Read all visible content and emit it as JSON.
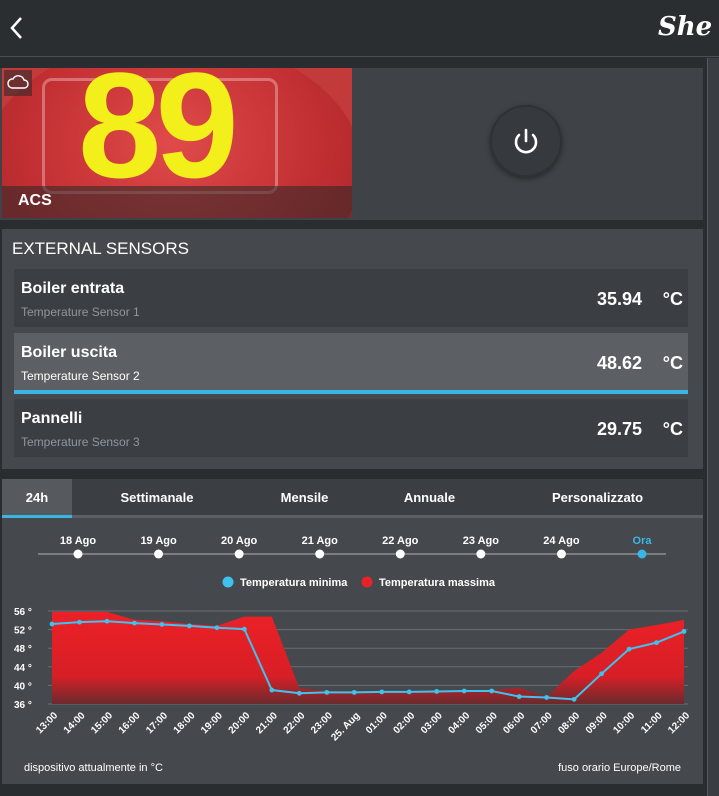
{
  "header": {
    "back_icon": "chevron-left-icon",
    "logo_text": "She"
  },
  "device": {
    "thumbnail_number": "89",
    "name": "ACS",
    "cloud_icon": "cloud-icon",
    "power_icon": "power-icon"
  },
  "sensors": {
    "title": "EXTERNAL SENSORS",
    "items": [
      {
        "name": "Boiler entrata",
        "sub": "Temperature Sensor 1",
        "value": "35.94",
        "unit": "°C"
      },
      {
        "name": "Boiler uscita",
        "sub": "Temperature Sensor 2",
        "value": "48.62",
        "unit": "°C"
      },
      {
        "name": "Pannelli",
        "sub": "Temperature Sensor 3",
        "value": "29.75",
        "unit": "°C"
      }
    ],
    "selected_index": 1,
    "accent": "#3ab6e6"
  },
  "tabs": [
    "24h",
    "Settimanale",
    "Mensile",
    "Annuale",
    "Personalizzato"
  ],
  "timeline": {
    "labels": [
      "18 Ago",
      "19 Ago",
      "20 Ago",
      "21 Ago",
      "22 Ago",
      "23 Ago",
      "24 Ago",
      "Ora"
    ],
    "active_index": 7
  },
  "chart_data": {
    "type": "area",
    "legend_position": "top",
    "series": [
      {
        "name": "Temperatura minima",
        "color": "#3ec3f0",
        "style": "line",
        "values": [
          53.2,
          53.6,
          53.8,
          53.4,
          53.1,
          52.8,
          52.4,
          52.1,
          39.0,
          38.3,
          38.5,
          38.5,
          38.6,
          38.6,
          38.7,
          38.8,
          38.8,
          37.6,
          37.4,
          37.0,
          42.5,
          47.8,
          49.2,
          51.6
        ]
      },
      {
        "name": "Temperatura massima",
        "color": "#e8222b",
        "style": "area",
        "values": [
          55.8,
          55.8,
          55.8,
          54.1,
          53.8,
          53.2,
          52.8,
          54.8,
          54.8,
          39.4,
          38.8,
          38.7,
          38.7,
          38.8,
          38.9,
          39.0,
          39.0,
          39.5,
          37.5,
          43.1,
          47.0,
          52.0,
          53.0,
          54.1
        ]
      }
    ],
    "x_labels": [
      "13:00",
      "14:00",
      "15:00",
      "16:00",
      "17:00",
      "18:00",
      "19:00",
      "20:00",
      "21:00",
      "22:00",
      "23:00",
      "25. Aug",
      "01:00",
      "02:00",
      "03:00",
      "04:00",
      "05:00",
      "06:00",
      "07:00",
      "08:00",
      "09:00",
      "10:00",
      "11:00",
      "12:00"
    ],
    "y_ticks": [
      "56 °",
      "52 °",
      "48 °",
      "44 °",
      "40 °",
      "36 °"
    ],
    "y_tick_values": [
      56,
      52,
      48,
      44,
      40,
      36
    ],
    "ylim": [
      36,
      56
    ],
    "grid": true
  },
  "footer": {
    "left": "dispositivo attualmente in °C",
    "right": "fuso orario Europe/Rome"
  }
}
